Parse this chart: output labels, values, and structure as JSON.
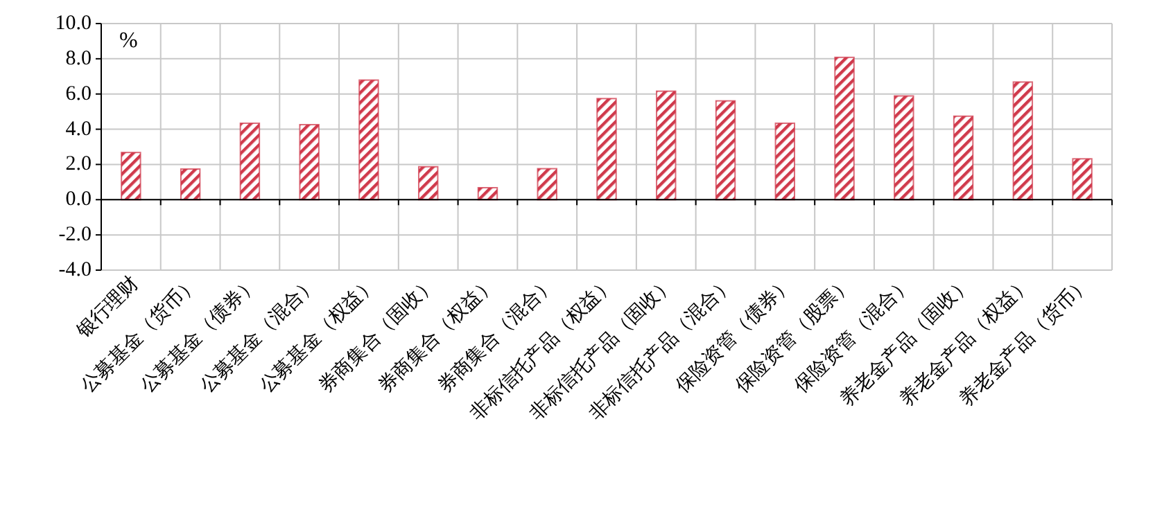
{
  "chart_data": {
    "type": "bar",
    "ylabel": "%",
    "categories": [
      "银行理财",
      "公募基金（货币）",
      "公募基金（债券）",
      "公募基金（混合）",
      "公募基金（权益）",
      "券商集合（固收）",
      "券商集合（权益）",
      "券商集合（混合）",
      "非标信托产品（权益）",
      "非标信托产品（固收）",
      "非标信托产品（混合）",
      "保险资管（债券）",
      "保险资管（股票）",
      "保险资管（混合）",
      "养老金产品（固收）",
      "养老金产品（权益）",
      "养老金产品（货币）"
    ],
    "values": [
      2.68,
      1.74,
      4.34,
      4.26,
      6.79,
      1.87,
      0.68,
      1.76,
      5.74,
      6.16,
      5.61,
      4.34,
      8.08,
      5.89,
      4.74,
      6.68,
      2.32
    ],
    "color": "#d03a4c",
    "ylim": [
      -4,
      10
    ],
    "yticks": [
      {
        "value": -4,
        "label": "-4.0"
      },
      {
        "value": -2,
        "label": "-2.0"
      },
      {
        "value": 0,
        "label": "0.0"
      },
      {
        "value": 2,
        "label": "2.0"
      },
      {
        "value": 4,
        "label": "4.0"
      },
      {
        "value": 6,
        "label": "6.0"
      },
      {
        "value": 8,
        "label": "8.0"
      },
      {
        "value": 10,
        "label": "10.0"
      }
    ],
    "grid": true
  }
}
